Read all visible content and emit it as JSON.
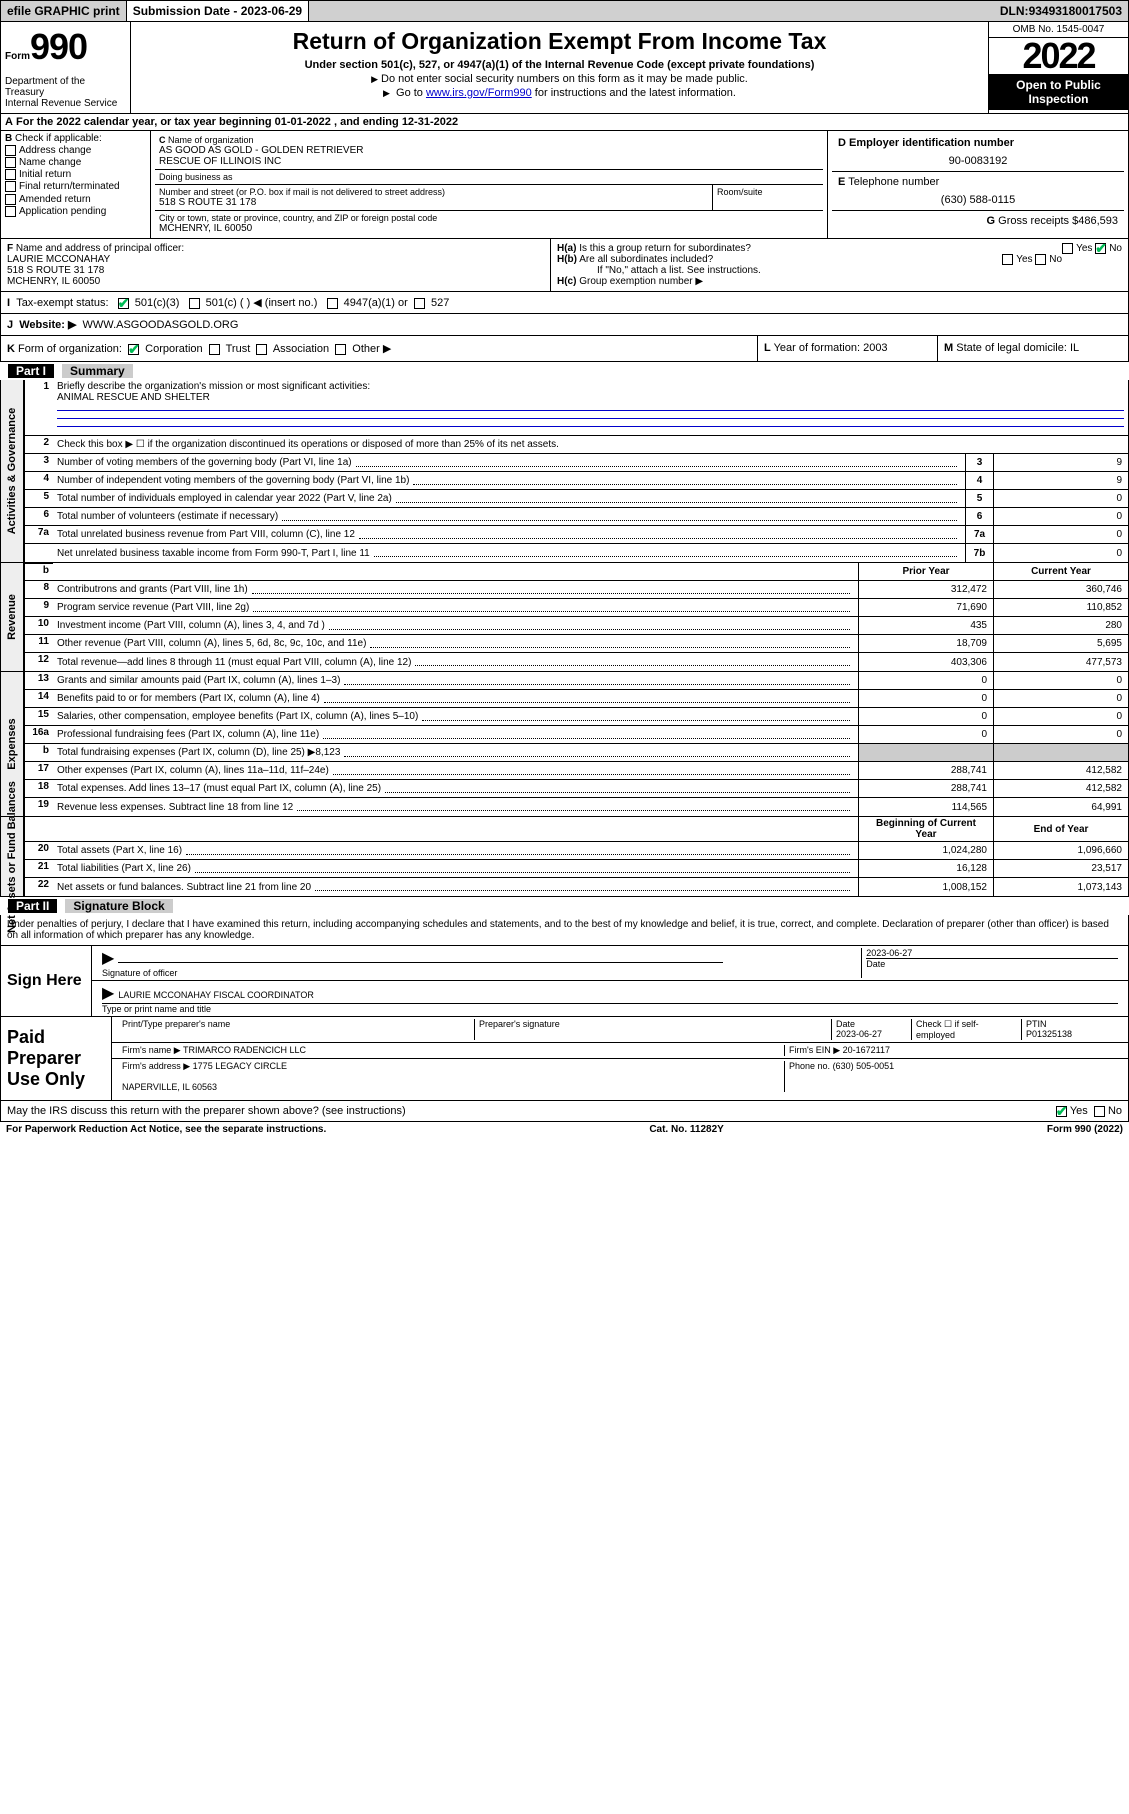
{
  "topbar": {
    "efile": "efile GRAPHIC print",
    "sub_label": "Submission Date - ",
    "sub_date": "2023-06-29",
    "dln_label": "DLN: ",
    "dln": "93493180017503"
  },
  "header": {
    "form_word": "Form",
    "form_num": "990",
    "title": "Return of Organization Exempt From Income Tax",
    "subtitle": "Under section 501(c), 527, or 4947(a)(1) of the Internal Revenue Code (except private foundations)",
    "note1": "Do not enter social security numbers on this form as it may be made public.",
    "note2_pre": "Go to ",
    "note2_link": "www.irs.gov/Form990",
    "note2_post": " for instructions and the latest information.",
    "dept": "Department of the Treasury\nInternal Revenue Service",
    "omb": "OMB No. 1545-0047",
    "year": "2022",
    "inspection": "Open to Public Inspection"
  },
  "periodA": {
    "text_pre": "For the 2022 calendar year, or tax year beginning ",
    "begin": "01-01-2022",
    "mid": " , and ending ",
    "end": "12-31-2022"
  },
  "boxB": {
    "label": "Check if applicable:",
    "opts": [
      "Address change",
      "Name change",
      "Initial return",
      "Final return/terminated",
      "Amended return",
      "Application pending"
    ]
  },
  "boxC": {
    "name_label": "Name of organization",
    "name": "AS GOOD AS GOLD - GOLDEN RETRIEVER\nRESCUE OF ILLINOIS INC",
    "dba_label": "Doing business as",
    "addr_label": "Number and street (or P.O. box if mail is not delivered to street address)",
    "room_label": "Room/suite",
    "addr": "518 S ROUTE 31 178",
    "city_label": "City or town, state or province, country, and ZIP or foreign postal code",
    "city": "MCHENRY, IL  60050"
  },
  "boxD": {
    "label": "Employer identification number",
    "val": "90-0083192"
  },
  "boxE": {
    "label": "Telephone number",
    "val": "(630) 588-0115"
  },
  "boxG": {
    "label": "Gross receipts $",
    "val": "486,593"
  },
  "boxF": {
    "label": "Name and address of principal officer:",
    "name": "LAURIE MCCONAHAY",
    "addr1": "518 S ROUTE 31 178",
    "addr2": "MCHENRY, IL  60050"
  },
  "boxH": {
    "a": "Is this a group return for subordinates?",
    "b": "Are all subordinates included?",
    "note": "If \"No,\" attach a list. See instructions.",
    "c": "Group exemption number ▶",
    "yes": "Yes",
    "no": "No"
  },
  "boxI": {
    "label": "Tax-exempt status:",
    "c3": "501(c)(3)",
    "c": "501(c) (   ) ◀ (insert no.)",
    "a1": "4947(a)(1) or",
    "s527": "527"
  },
  "boxJ": {
    "label": "Website: ▶",
    "val": "WWW.ASGOODASGOLD.ORG"
  },
  "boxK": {
    "label": "Form of organization:",
    "opts": [
      "Corporation",
      "Trust",
      "Association",
      "Other ▶"
    ]
  },
  "boxL": {
    "label": "Year of formation:",
    "val": "2003"
  },
  "boxM": {
    "label": "State of legal domicile:",
    "val": "IL"
  },
  "part1": {
    "num": "Part I",
    "title": "Summary"
  },
  "summary": {
    "q1": "Briefly describe the organization's mission or most significant activities:",
    "mission": "ANIMAL RESCUE AND SHELTER",
    "q2": "Check this box ▶ ☐  if the organization discontinued its operations or disposed of more than 25% of its net assets.",
    "rows_gov": [
      {
        "n": "3",
        "t": "Number of voting members of the governing body (Part VI, line 1a)",
        "box": "3",
        "v": "9"
      },
      {
        "n": "4",
        "t": "Number of independent voting members of the governing body (Part VI, line 1b)",
        "box": "4",
        "v": "9"
      },
      {
        "n": "5",
        "t": "Total number of individuals employed in calendar year 2022 (Part V, line 2a)",
        "box": "5",
        "v": "0"
      },
      {
        "n": "6",
        "t": "Total number of volunteers (estimate if necessary)",
        "box": "6",
        "v": "0"
      },
      {
        "n": "7a",
        "t": "Total unrelated business revenue from Part VIII, column (C), line 12",
        "box": "7a",
        "v": "0"
      },
      {
        "n": "",
        "t": "Net unrelated business taxable income from Form 990-T, Part I, line 11",
        "box": "7b",
        "v": "0"
      }
    ],
    "col_prior": "Prior Year",
    "col_curr": "Current Year",
    "rows_rev": [
      {
        "n": "8",
        "t": "Contributrons and grants (Part VIII, line 1h)",
        "p": "312,472",
        "c": "360,746"
      },
      {
        "n": "9",
        "t": "Program service revenue (Part VIII, line 2g)",
        "p": "71,690",
        "c": "110,852"
      },
      {
        "n": "10",
        "t": "Investment income (Part VIII, column (A), lines 3, 4, and 7d )",
        "p": "435",
        "c": "280"
      },
      {
        "n": "11",
        "t": "Other revenue (Part VIII, column (A), lines 5, 6d, 8c, 9c, 10c, and 11e)",
        "p": "18,709",
        "c": "5,695"
      },
      {
        "n": "12",
        "t": "Total revenue—add lines 8 through 11 (must equal Part VIII, column (A), line 12)",
        "p": "403,306",
        "c": "477,573"
      }
    ],
    "rows_exp": [
      {
        "n": "13",
        "t": "Grants and similar amounts paid (Part IX, column (A), lines 1–3)",
        "p": "0",
        "c": "0"
      },
      {
        "n": "14",
        "t": "Benefits paid to or for members (Part IX, column (A), line 4)",
        "p": "0",
        "c": "0"
      },
      {
        "n": "15",
        "t": "Salaries, other compensation, employee benefits (Part IX, column (A), lines 5–10)",
        "p": "0",
        "c": "0"
      },
      {
        "n": "16a",
        "t": "Professional fundraising fees (Part IX, column (A), line 11e)",
        "p": "0",
        "c": "0"
      },
      {
        "n": "b",
        "t": "Total fundraising expenses (Part IX, column (D), line 25) ▶8,123",
        "p": "",
        "c": "",
        "shade": true
      },
      {
        "n": "17",
        "t": "Other expenses (Part IX, column (A), lines 11a–11d, 11f–24e)",
        "p": "288,741",
        "c": "412,582"
      },
      {
        "n": "18",
        "t": "Total expenses. Add lines 13–17 (must equal Part IX, column (A), line 25)",
        "p": "288,741",
        "c": "412,582"
      },
      {
        "n": "19",
        "t": "Revenue less expenses. Subtract line 18 from line 12",
        "p": "114,565",
        "c": "64,991"
      }
    ],
    "col_bcy": "Beginning of Current Year",
    "col_eoy": "End of Year",
    "rows_net": [
      {
        "n": "20",
        "t": "Total assets (Part X, line 16)",
        "p": "1,024,280",
        "c": "1,096,660"
      },
      {
        "n": "21",
        "t": "Total liabilities (Part X, line 26)",
        "p": "16,128",
        "c": "23,517"
      },
      {
        "n": "22",
        "t": "Net assets or fund balances. Subtract line 21 from line 20",
        "p": "1,008,152",
        "c": "1,073,143"
      }
    ],
    "tabs": {
      "gov": "Activities & Governance",
      "rev": "Revenue",
      "exp": "Expenses",
      "net": "Net Assets or Fund Balances"
    }
  },
  "part2": {
    "num": "Part II",
    "title": "Signature Block"
  },
  "sig": {
    "decl": "Under penalties of perjury, I declare that I have examined this return, including accompanying schedules and statements, and to the best of my knowledge and belief, it is true, correct, and complete. Declaration of preparer (other than officer) is based on all information of which preparer has any knowledge.",
    "sign_here": "Sign Here",
    "sig_of_officer": "Signature of officer",
    "date": "2023-06-27",
    "date_lbl": "Date",
    "officer": "LAURIE MCCONAHAY FISCAL COORDINATOR",
    "officer_lbl": "Type or print name and title",
    "paid": "Paid Preparer Use Only",
    "h1": "Print/Type preparer's name",
    "h2": "Preparer's signature",
    "h3": "Date",
    "h3v": "2023-06-27",
    "h4": "Check ☐ if self-employed",
    "h5": "PTIN",
    "h5v": "P01325138",
    "firm_name_lbl": "Firm's name    ▶",
    "firm_name": "TRIMARCO RADENCICH LLC",
    "firm_ein_lbl": "Firm's EIN ▶",
    "firm_ein": "20-1672117",
    "firm_addr_lbl": "Firm's address ▶",
    "firm_addr": "1775 LEGACY CIRCLE\n\nNAPERVILLE, IL  60563",
    "phone_lbl": "Phone no.",
    "phone": "(630) 505-0051",
    "discuss": "May the IRS discuss this return with the preparer shown above? (see instructions)",
    "yes": "Yes",
    "no": "No"
  },
  "footer": {
    "pra": "For Paperwork Reduction Act Notice, see the separate instructions.",
    "cat": "Cat. No. 11282Y",
    "form": "Form 990 (2022)"
  },
  "letters": {
    "A": "A",
    "B": "B",
    "C": "C",
    "D": "D",
    "E": "E",
    "F": "F",
    "G": "G",
    "I": "I",
    "J": "J",
    "K": "K",
    "L": "L",
    "M": "M",
    "Ha": "H(a)",
    "Hb": "H(b)",
    "Hc": "H(c)"
  }
}
